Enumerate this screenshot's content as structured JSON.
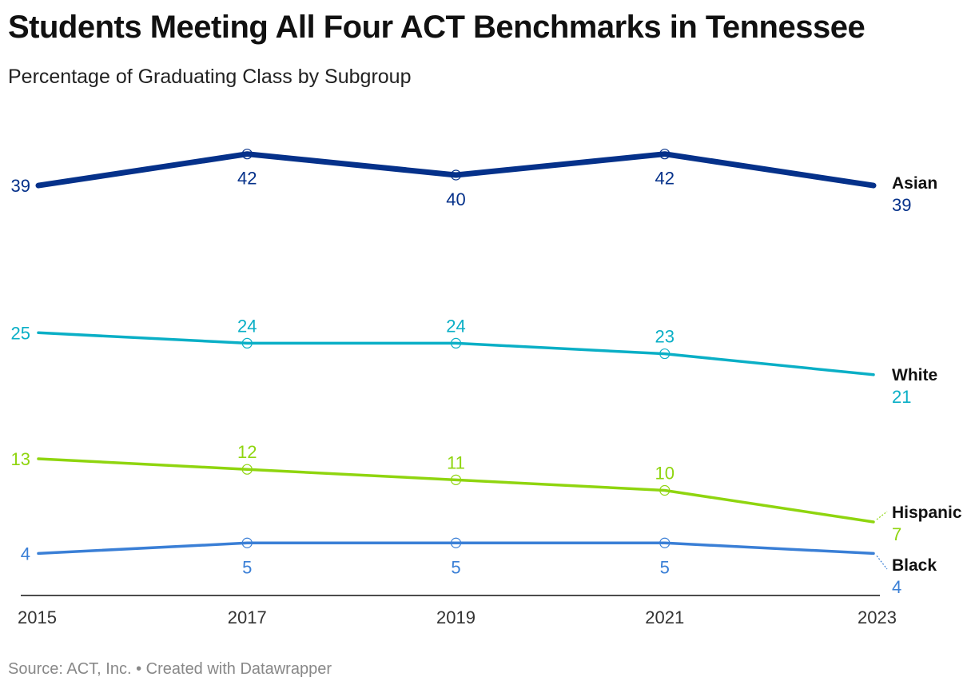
{
  "title": "Students Meeting All Four ACT Benchmarks in Tennessee",
  "subtitle": "Percentage of Graduating Class by Subgroup",
  "footer": {
    "source": "Source: ACT, Inc.",
    "separator": "•",
    "credit": "Created with Datawrapper"
  },
  "chart_data": {
    "type": "line",
    "title": "Students Meeting All Four ACT Benchmarks in Tennessee",
    "subtitle": "Percentage of Graduating Class by Subgroup",
    "xlabel": "",
    "ylabel": "",
    "x": [
      "2015",
      "2017",
      "2019",
      "2021",
      "2023"
    ],
    "ylim": [
      0,
      45
    ],
    "grid": false,
    "legend": "direct labels at line ends",
    "series": [
      {
        "name": "Asian",
        "values": [
          39,
          42,
          40,
          42,
          39
        ],
        "color": "#05318a"
      },
      {
        "name": "White",
        "values": [
          25,
          24,
          24,
          23,
          21
        ],
        "color": "#0aafc6"
      },
      {
        "name": "Hispanic",
        "values": [
          13,
          12,
          11,
          10,
          7
        ],
        "color": "#8fd50f"
      },
      {
        "name": "Black",
        "values": [
          4,
          5,
          5,
          5,
          4
        ],
        "color": "#3a7fd6"
      }
    ]
  }
}
